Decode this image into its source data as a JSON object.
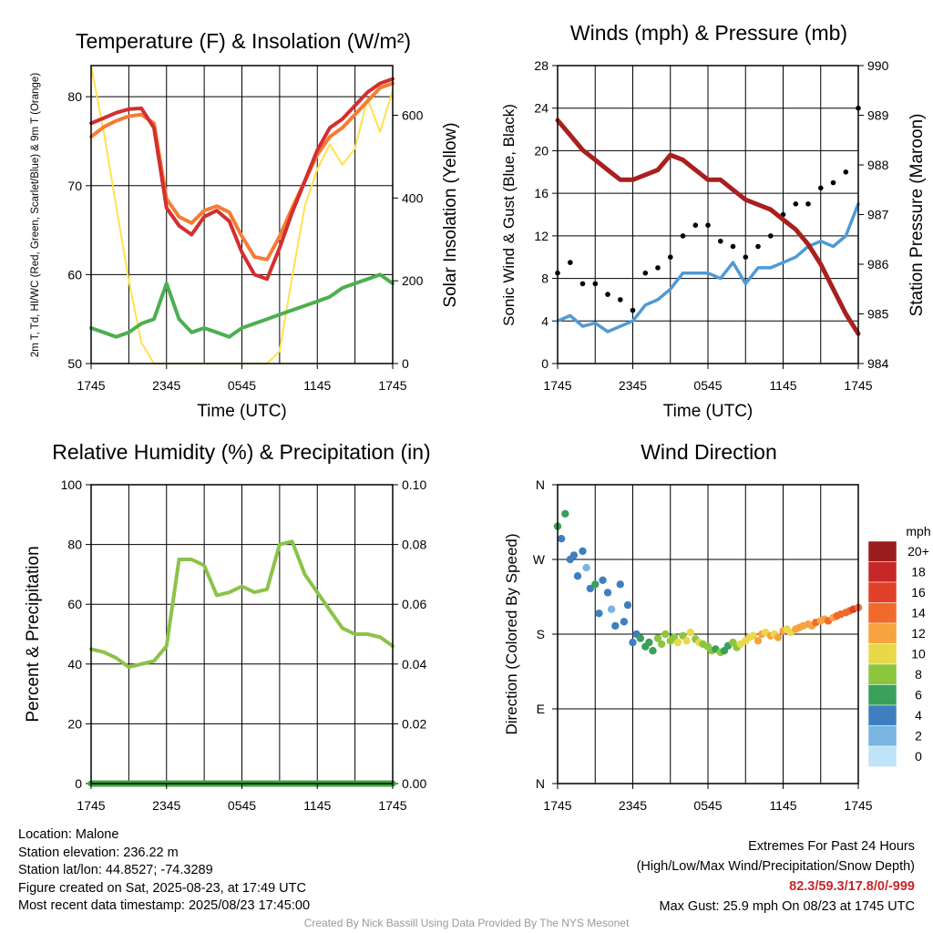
{
  "chart_data": [
    {
      "type": "line",
      "title": "Temperature (F) & Insolation (W/m²)",
      "xlabel": "Time (UTC)",
      "ylabel": "2m T, Td, HI/WC (Red, Green, Scarlet/Blue) & 9m T (Orange)",
      "y2label": "Solar Insolation (Yellow)",
      "x_ticks": [
        "1745",
        "2345",
        "0545",
        "1145",
        "1745"
      ],
      "y_ticks": [
        50,
        60,
        70,
        80
      ],
      "y2_ticks": [
        0,
        200,
        400,
        600
      ],
      "ylim": [
        50,
        83.5
      ],
      "y2lim": [
        0,
        720
      ],
      "grid": true,
      "x": [
        0,
        1,
        2,
        3,
        4,
        5,
        6,
        7,
        8,
        9,
        10,
        11,
        12,
        13,
        14,
        15,
        16,
        17,
        18,
        19,
        20,
        21,
        22,
        23,
        24
      ],
      "series": [
        {
          "name": "2m T",
          "color": "#d32f2f",
          "values": [
            77,
            77.6,
            78.2,
            78.6,
            78.7,
            76.5,
            67.5,
            65.5,
            64.5,
            66.5,
            67.2,
            66,
            62.5,
            60,
            59.5,
            63,
            67,
            70.5,
            74,
            76.5,
            77.5,
            79,
            80.5,
            81.5,
            82
          ]
        },
        {
          "name": "9m T",
          "color": "#f57c32",
          "values": [
            75.5,
            76.6,
            77.3,
            77.8,
            78,
            77,
            68.5,
            66.5,
            65.8,
            67.2,
            67.7,
            67,
            64.3,
            62,
            61.7,
            64.3,
            67.5,
            70.5,
            73.5,
            75.5,
            76.5,
            78,
            79.5,
            81,
            81.5
          ]
        },
        {
          "name": "2m Td",
          "color": "#4caf50",
          "values": [
            54,
            53.5,
            53,
            53.5,
            54.5,
            55,
            59,
            55,
            53.5,
            54,
            53.5,
            53,
            54,
            54.5,
            55,
            55.5,
            56,
            56.5,
            57,
            57.5,
            58.5,
            59,
            59.5,
            60,
            59
          ]
        },
        {
          "name": "Solar Insolation",
          "color": "#ffe14d",
          "values": [
            720,
            560,
            380,
            200,
            50,
            0,
            0,
            0,
            0,
            0,
            0,
            0,
            0,
            0,
            0,
            30,
            210,
            380,
            470,
            530,
            480,
            520,
            640,
            560,
            660
          ]
        }
      ]
    },
    {
      "type": "line",
      "title": "Winds (mph) & Pressure (mb)",
      "xlabel": "Time (UTC)",
      "ylabel": "Sonic Wind & Gust (Blue, Black)",
      "y2label": "Station Pressure (Maroon)",
      "x_ticks": [
        "1745",
        "2345",
        "0545",
        "1145",
        "1745"
      ],
      "y_ticks": [
        0,
        4,
        8,
        12,
        16,
        20,
        24,
        28
      ],
      "y2_ticks": [
        984,
        985,
        986,
        987,
        988,
        989,
        990
      ],
      "ylim": [
        0,
        28
      ],
      "y2lim": [
        984,
        990
      ],
      "grid": true,
      "x": [
        0,
        1,
        2,
        3,
        4,
        5,
        6,
        7,
        8,
        9,
        10,
        11,
        12,
        13,
        14,
        15,
        16,
        17,
        18,
        19,
        20,
        21,
        22,
        23,
        24
      ],
      "series": [
        {
          "name": "Sonic Wind",
          "color": "#4f9ad6",
          "values": [
            4,
            4.5,
            3.5,
            3.8,
            3,
            3.5,
            4,
            5.5,
            6,
            7,
            8.5,
            8.5,
            8.5,
            8,
            9.5,
            7.5,
            9,
            9,
            9.5,
            10,
            11,
            11.5,
            11,
            12,
            15
          ]
        },
        {
          "name": "Gust",
          "color": "#000000",
          "values": [
            8.5,
            9.5,
            7.5,
            7.5,
            6.5,
            6,
            5,
            8.5,
            9,
            10,
            12,
            13,
            13,
            11.5,
            11,
            10,
            11,
            12,
            14,
            15,
            15,
            16.5,
            17,
            18,
            24
          ]
        },
        {
          "name": "Station Pressure",
          "color": "#a82020",
          "values": [
            988.9,
            988.6,
            988.3,
            988.1,
            987.9,
            987.7,
            987.7,
            987.8,
            987.9,
            988.2,
            988.1,
            987.9,
            987.7,
            987.7,
            987.5,
            987.3,
            987.2,
            987.1,
            986.9,
            986.7,
            986.4,
            986.0,
            985.5,
            985.0,
            984.6
          ]
        }
      ]
    },
    {
      "type": "line",
      "title": "Relative Humidity (%) & Precipitation (in)",
      "xlabel": "",
      "ylabel": "Percent & Precipitation",
      "x_ticks": [
        "1745",
        "2345",
        "0545",
        "1145",
        "1745"
      ],
      "y_ticks": [
        0,
        20,
        40,
        60,
        80,
        100
      ],
      "y2_ticks": [
        "0.00",
        "0.02",
        "0.04",
        "0.06",
        "0.08",
        "0.10"
      ],
      "ylim": [
        0,
        100
      ],
      "y2lim": [
        0,
        0.1
      ],
      "grid": true,
      "x": [
        0,
        1,
        2,
        3,
        4,
        5,
        6,
        7,
        8,
        9,
        10,
        11,
        12,
        13,
        14,
        15,
        16,
        17,
        18,
        19,
        20,
        21,
        22,
        23,
        24
      ],
      "series": [
        {
          "name": "Relative Humidity",
          "color": "#8bc34a",
          "values": [
            45,
            44,
            42,
            39,
            40,
            41,
            46,
            75,
            75,
            73,
            63,
            64,
            66,
            64,
            65,
            80,
            81,
            70,
            64,
            58,
            52,
            50,
            50,
            49,
            46
          ]
        },
        {
          "name": "Precipitation",
          "color": "#3aa63a",
          "values": [
            0,
            0,
            0,
            0,
            0,
            0,
            0,
            0,
            0,
            0,
            0,
            0,
            0,
            0,
            0,
            0,
            0,
            0,
            0,
            0,
            0,
            0,
            0,
            0,
            0
          ]
        }
      ]
    },
    {
      "type": "scatter",
      "title": "Wind Direction",
      "xlabel": "",
      "ylabel": "Direction (Colored By Speed)",
      "x_ticks": [
        "1745",
        "2345",
        "0545",
        "1145",
        "1745"
      ],
      "y_ticks": [
        "N",
        "W",
        "S",
        "E",
        "N"
      ],
      "ylim": [
        0,
        360
      ],
      "grid": true,
      "colorbar": {
        "title": "mph",
        "labels": [
          "20+",
          "18",
          "16",
          "14",
          "12",
          "10",
          "8",
          "6",
          "4",
          "2",
          "0"
        ],
        "colors": [
          "#9b1c1c",
          "#c62828",
          "#e0402a",
          "#f06a2a",
          "#f7a440",
          "#e9d84a",
          "#8cc63f",
          "#3aa05a",
          "#3f7fc0",
          "#7ab4e0",
          "#bfe3f7"
        ]
      },
      "x": [
        0,
        0.3,
        0.6,
        1,
        1.3,
        1.6,
        2,
        2.3,
        2.6,
        3,
        3.3,
        3.6,
        4,
        4.3,
        4.6,
        5,
        5.3,
        5.6,
        6,
        6.3,
        6.6,
        7,
        7.3,
        7.6,
        8,
        8.3,
        8.6,
        9,
        9.3,
        9.6,
        10,
        10.3,
        10.6,
        11,
        11.3,
        11.6,
        12,
        12.3,
        12.6,
        13,
        13.3,
        13.6,
        14,
        14.3,
        14.6,
        15,
        15.3,
        15.6,
        16,
        16.3,
        16.6,
        17,
        17.3,
        17.6,
        18,
        18.3,
        18.6,
        19,
        19.3,
        19.6,
        20,
        20.3,
        20.6,
        21,
        21.3,
        21.6,
        22,
        22.3,
        22.6,
        23,
        23.3,
        23.6,
        24
      ],
      "values": [
        310,
        295,
        325,
        270,
        275,
        250,
        280,
        260,
        235,
        240,
        205,
        245,
        230,
        210,
        190,
        240,
        195,
        215,
        170,
        180,
        175,
        165,
        170,
        160,
        175,
        168,
        180,
        172,
        176,
        170,
        178,
        172,
        182,
        174,
        170,
        168,
        165,
        160,
        162,
        158,
        160,
        166,
        170,
        164,
        168,
        172,
        176,
        178,
        172,
        180,
        182,
        178,
        180,
        176,
        184,
        186,
        182,
        186,
        188,
        190,
        192,
        190,
        194,
        196,
        198,
        196,
        200,
        202,
        204,
        206,
        208,
        210,
        212
      ],
      "speeds": [
        6,
        4,
        5,
        3,
        4,
        3,
        4,
        2,
        4,
        5,
        4,
        3,
        4,
        2,
        4,
        4,
        3,
        4,
        4,
        3,
        5,
        6,
        5,
        6,
        7,
        8,
        7,
        7,
        8,
        9,
        8,
        10,
        9,
        8,
        9,
        7,
        8,
        7,
        6,
        7,
        6,
        6,
        7,
        8,
        9,
        9,
        10,
        10,
        11,
        11,
        10,
        11,
        10,
        11,
        11,
        10,
        10,
        11,
        12,
        12,
        11,
        12,
        13,
        12,
        12,
        13,
        12,
        14,
        13,
        14,
        13,
        15,
        14
      ]
    }
  ],
  "info": {
    "location": "Location: Malone",
    "elevation": "Station elevation: 236.22 m",
    "latlon": "Station lat/lon: 44.8527; -74.3289",
    "created": "Figure created on Sat, 2025-08-23, at 17:49 UTC",
    "recent": "Most recent data timestamp: 2025/08/23 17:45:00"
  },
  "extremes": {
    "title": "Extremes For Past 24 Hours",
    "subtitle": "(High/Low/Max Wind/Precipitation/Snow Depth)",
    "values": "82.3/59.3/17.8/0/-999",
    "gust": "Max Gust: 25.9 mph On 08/23 at 1745 UTC",
    "highlight_color": "#c62828"
  },
  "credit": "Created By Nick Bassill Using Data Provided By The NYS Mesonet"
}
